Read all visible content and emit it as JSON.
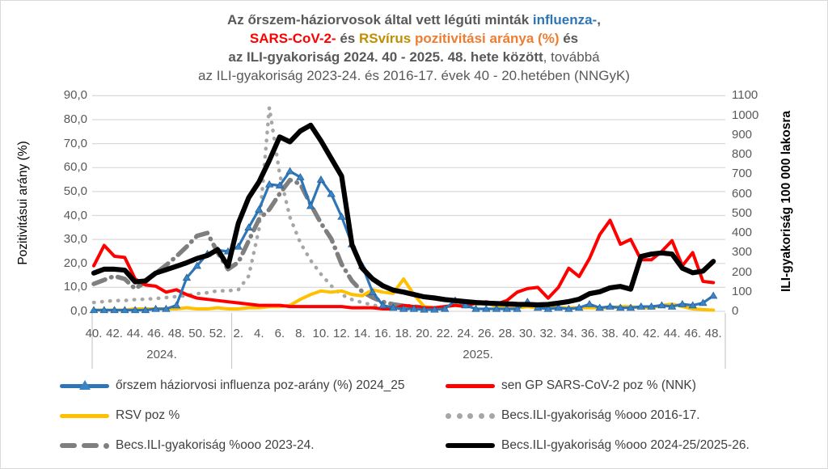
{
  "title": {
    "lines": [
      {
        "segments": [
          {
            "text": "Az őrszem-háziorvosok által vett légúti minták ",
            "color": "#595959",
            "bold": true
          },
          {
            "text": "influenza-",
            "color": "#2E75B6",
            "bold": true
          },
          {
            "text": ",",
            "color": "#595959",
            "bold": true
          }
        ]
      },
      {
        "segments": [
          {
            "text": "SARS-CoV-2-",
            "color": "#FF0000",
            "bold": true
          },
          {
            "text": " és ",
            "color": "#595959",
            "bold": true
          },
          {
            "text": "RSvírus",
            "color": "#BF8F00",
            "bold": true
          },
          {
            "text": " ",
            "color": "#595959",
            "bold": true
          },
          {
            "text": "pozitivitási aránya (%)",
            "color": "#ED7D31",
            "bold": true
          },
          {
            "text": " és",
            "color": "#595959",
            "bold": true
          }
        ]
      },
      {
        "segments": [
          {
            "text": "az ILI-gyakoriság 2024. 40 - 2025. 48. hete között",
            "color": "#595959",
            "bold": true
          },
          {
            "text": ", továbbá",
            "color": "#595959",
            "bold": false
          }
        ]
      },
      {
        "segments": [
          {
            "text": "az ILI-gyakoriság 2023-24. és 2016-17. évek 40 - 20.hetében (NNGyK)",
            "color": "#595959",
            "bold": false
          }
        ]
      }
    ]
  },
  "axes": {
    "left": {
      "label": "Pozitivitásui arány (%)",
      "color": "#ED7D31",
      "ticks": [
        "90,0",
        "80,0",
        "70,0",
        "60,0",
        "50,0",
        "40,0",
        "30,0",
        "20,0",
        "10,0",
        "0,0"
      ],
      "range": [
        0,
        90
      ]
    },
    "right": {
      "label": "ILI-gyakoriság 100 000 lakosra",
      "color": "#000000",
      "ticks": [
        "1100",
        "1000",
        "900",
        "800",
        "700",
        "600",
        "500",
        "400",
        "300",
        "200",
        "100",
        "0"
      ],
      "range": [
        0,
        1100
      ]
    }
  },
  "x_axis": {
    "tick_labels": [
      "40.",
      "42.",
      "44.",
      "46.",
      "48.",
      "50.",
      "52.",
      "2.",
      "4.",
      "6.",
      "8.",
      "10.",
      "12.",
      "14.",
      "16.",
      "18.",
      "20.",
      "22.",
      "24.",
      "26.",
      "28.",
      "30.",
      "32.",
      "34.",
      "36.",
      "38.",
      "40.",
      "42.",
      "44.",
      "46.",
      "48."
    ],
    "year_labels": [
      "2024.",
      "2025."
    ]
  },
  "chart_data": {
    "type": "line",
    "x_weeks": [
      40,
      41,
      42,
      43,
      44,
      45,
      46,
      47,
      48,
      49,
      50,
      51,
      52,
      1,
      2,
      3,
      4,
      5,
      6,
      7,
      8,
      9,
      10,
      11,
      12,
      13,
      14,
      15,
      16,
      17,
      18,
      19,
      20,
      21,
      22,
      23,
      24,
      25,
      26,
      27,
      28,
      29,
      30,
      31,
      32,
      33,
      34,
      35,
      36,
      37,
      38,
      39,
      40,
      41,
      42,
      43,
      44,
      45,
      46,
      47,
      48
    ],
    "xlabel_years": {
      "2024": "weeks 40-52",
      "2025": "weeks 1-48"
    },
    "left_axis_label": "Pozitivitásui arány (%)",
    "right_axis_label": "ILI-gyakoriság 100 000 lakosra",
    "left_range": [
      0,
      90
    ],
    "right_range": [
      0,
      1100
    ],
    "grid": "horizontal",
    "legend_position": "bottom",
    "series": [
      {
        "name": "őrszem háziorvosi influenza poz-arány (%) 2024_25",
        "axis": "left",
        "color": "#2E75B6",
        "style": "solid-triangle",
        "marker": "triangle",
        "values": [
          0.5,
          0.5,
          0.5,
          0.5,
          0.5,
          0.5,
          1,
          1,
          2.5,
          14,
          19,
          24,
          25.5,
          25,
          27,
          35,
          42.5,
          53,
          52.5,
          58.5,
          56,
          44,
          55,
          49,
          39.5,
          28,
          19,
          8,
          2.5,
          1.5,
          1,
          1,
          0.7,
          0.7,
          1,
          4.5,
          2.5,
          1,
          1,
          1,
          1,
          1,
          4,
          1.5,
          1,
          1.5,
          1,
          1.5,
          3,
          1.5,
          2,
          1.5,
          1.5,
          2,
          2,
          2.5,
          2,
          3,
          2.5,
          3.5,
          6.5
        ]
      },
      {
        "name": "sen GP SARS-CoV-2 poz % (NNK)",
        "axis": "left",
        "color": "#FF0000",
        "style": "solid",
        "marker": "none",
        "values": [
          19,
          27.5,
          23,
          22.5,
          13.5,
          11,
          10.5,
          8,
          9,
          7,
          5.5,
          5,
          4.5,
          4,
          3.5,
          3,
          2.5,
          2.5,
          2.5,
          2,
          2,
          2,
          2,
          2,
          2,
          1.5,
          1.5,
          1.5,
          1,
          1,
          2.5,
          2,
          1.5,
          1.5,
          2,
          2.5,
          2,
          3.5,
          4,
          3,
          4.5,
          8,
          9.5,
          10,
          5.5,
          10,
          18,
          14.5,
          22,
          32,
          38,
          28,
          30,
          21.5,
          21.5,
          25,
          29.5,
          19,
          24.5,
          12.5,
          12
        ]
      },
      {
        "name": "RSV poz %",
        "axis": "left",
        "color": "#FFC000",
        "style": "solid",
        "marker": "none",
        "values": [
          0.5,
          0.5,
          0.5,
          0.5,
          1,
          1,
          1,
          1,
          1,
          1.5,
          1,
          1,
          1.5,
          1,
          1,
          1.5,
          1.5,
          2,
          2,
          2.5,
          5,
          7,
          8.5,
          8,
          8.5,
          7,
          6.5,
          9,
          8,
          7.5,
          13.5,
          7,
          2,
          1.5,
          2,
          2.5,
          3.5,
          3,
          3.5,
          2,
          1.5,
          1.5,
          2,
          1.5,
          1.5,
          1.5,
          1.5,
          1.5,
          1.5,
          1.5,
          1.5,
          2,
          2,
          1.5,
          1.5,
          2.5,
          3,
          2,
          1,
          0.7,
          0.5
        ]
      },
      {
        "name": "Becs.ILI-gyakoriság %ooo 2016-17.",
        "axis": "right",
        "color": "#A6A6A6",
        "style": "dotted",
        "marker": "none",
        "values": [
          45,
          50,
          55,
          55,
          60,
          62,
          65,
          70,
          75,
          80,
          90,
          95,
          105,
          105,
          110,
          180,
          420,
          1040,
          700,
          480,
          350,
          260,
          190,
          130,
          85,
          60,
          45,
          32,
          22,
          16,
          13,
          10,
          8,
          null,
          null,
          null,
          null,
          null,
          null,
          null,
          null,
          null,
          null,
          null,
          null,
          null,
          null,
          null,
          null,
          null,
          null,
          null,
          null,
          null,
          null,
          null,
          null,
          null,
          null,
          null,
          null
        ]
      },
      {
        "name": "Becs.ILI-gyakoriság %ooo 2023-24.",
        "axis": "right",
        "color": "#7F7F7F",
        "style": "dash-dot",
        "marker": "none",
        "values": [
          140,
          160,
          180,
          165,
          115,
          150,
          195,
          235,
          280,
          330,
          385,
          400,
          300,
          215,
          250,
          360,
          470,
          520,
          600,
          670,
          650,
          545,
          450,
          370,
          240,
          155,
          100,
          70,
          48,
          36,
          28,
          24,
          20,
          null,
          null,
          null,
          null,
          null,
          null,
          null,
          null,
          null,
          null,
          null,
          null,
          null,
          null,
          null,
          null,
          null,
          null,
          null,
          null,
          null,
          null,
          null,
          null,
          null,
          null,
          null,
          null
        ]
      },
      {
        "name": "Becs.ILI-gyakoriság %ooo 2024-25/2025-26.",
        "axis": "right",
        "color": "#000000",
        "style": "solid-thick",
        "marker": "none",
        "values": [
          195,
          215,
          215,
          210,
          150,
          155,
          195,
          212,
          230,
          248,
          270,
          285,
          315,
          230,
          450,
          580,
          660,
          770,
          890,
          865,
          920,
          950,
          870,
          780,
          690,
          340,
          220,
          165,
          130,
          108,
          98,
          86,
          74,
          68,
          60,
          55,
          50,
          45,
          42,
          40,
          38,
          36,
          35,
          33,
          35,
          42,
          50,
          62,
          90,
          100,
          120,
          127,
          113,
          280,
          292,
          298,
          292,
          220,
          197,
          205,
          255
        ]
      }
    ]
  }
}
